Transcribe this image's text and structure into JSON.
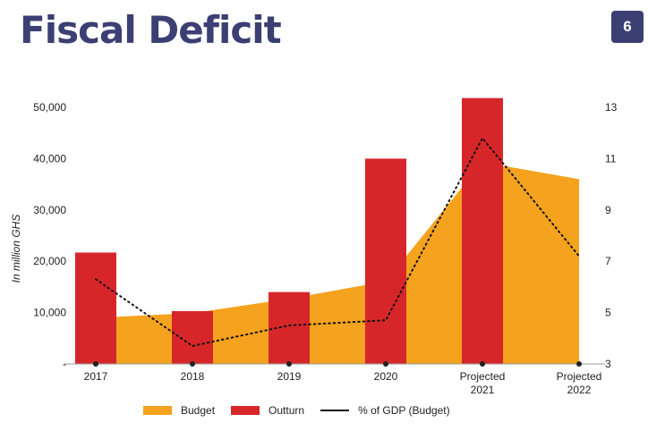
{
  "page": {
    "title": "Fiscal Deficit",
    "page_number": "6"
  },
  "colors": {
    "title": "#3b3f74",
    "budget": "#f5a21f",
    "outturn": "#d7262a",
    "gdp_line": "#111111"
  },
  "chart_data": {
    "type": "bar",
    "title": "",
    "ylabel": "In million GHS",
    "categories": [
      "2017",
      "2018",
      "2019",
      "2020",
      "Projected 2021",
      "Projected 2022"
    ],
    "category_lines": [
      [
        "2017"
      ],
      [
        "2018"
      ],
      [
        "2019"
      ],
      [
        "2020"
      ],
      [
        "Projected",
        "2021"
      ],
      [
        "Projected",
        "2022"
      ]
    ],
    "ylim": [
      0,
      50000
    ],
    "yticks": [
      0,
      10000,
      20000,
      30000,
      40000,
      50000
    ],
    "ytick_labels": [
      "-",
      "10,000",
      "20,000",
      "30,000",
      "40,000",
      "50,000"
    ],
    "y2lim": [
      3,
      13
    ],
    "y2ticks": [
      3,
      5,
      7,
      9,
      11,
      13
    ],
    "y2tick_labels": [
      "3",
      "5",
      "7",
      "9",
      "11",
      "13"
    ],
    "legend_position": "bottom",
    "grid": false,
    "series": [
      {
        "name": "Budget",
        "type": "area",
        "axis": "left",
        "values": [
          9200,
          9900,
          12700,
          16100,
          39300,
          36000
        ]
      },
      {
        "name": "Outturn",
        "type": "bar",
        "axis": "left",
        "values": [
          21700,
          10300,
          14000,
          40000,
          51800,
          null
        ]
      },
      {
        "name": "% of GDP (Budget)",
        "type": "line",
        "axis": "right",
        "style": "dotted",
        "values": [
          6.3,
          3.7,
          4.5,
          4.7,
          11.8,
          7.2
        ]
      }
    ]
  }
}
